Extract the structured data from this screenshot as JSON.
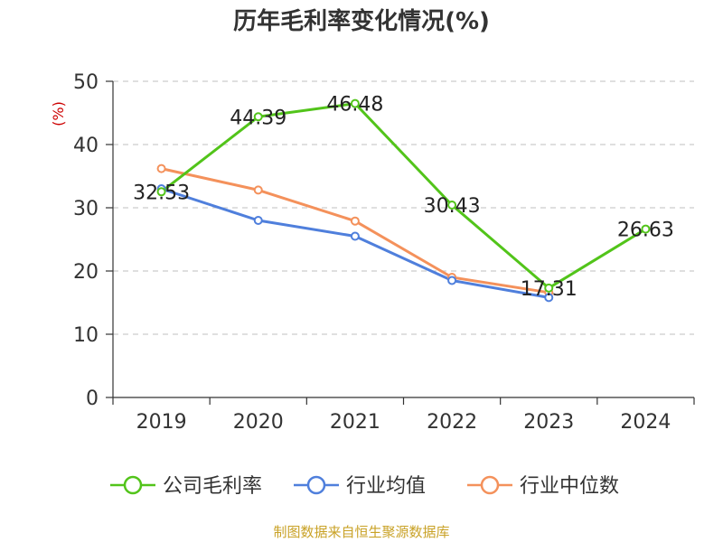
{
  "chart_data": {
    "type": "line",
    "title": "历年毛利率变化情况(%)",
    "ylabel": "(%)",
    "categories": [
      "2019",
      "2020",
      "2021",
      "2022",
      "2023",
      "2024"
    ],
    "ylim": [
      0,
      50
    ],
    "yticks": [
      "0",
      "10",
      "20",
      "30",
      "40",
      "50"
    ],
    "grid": true,
    "legend_position": "bottom",
    "series": [
      {
        "name": "公司毛利率",
        "color": "#52c41a",
        "values": [
          32.53,
          44.39,
          46.48,
          30.43,
          17.31,
          26.63
        ],
        "labels": [
          "32.53",
          "44.39",
          "46.48",
          "30.43",
          "17.31",
          "26.63"
        ]
      },
      {
        "name": "行业均值",
        "color": "#4f7fdc",
        "values": [
          33.0,
          28.0,
          25.5,
          18.5,
          15.8,
          null
        ]
      },
      {
        "name": "行业中位数",
        "color": "#f4915b",
        "values": [
          36.2,
          32.8,
          27.9,
          19.0,
          16.6,
          null
        ]
      }
    ],
    "source": "制图数据来自恒生聚源数据库"
  }
}
